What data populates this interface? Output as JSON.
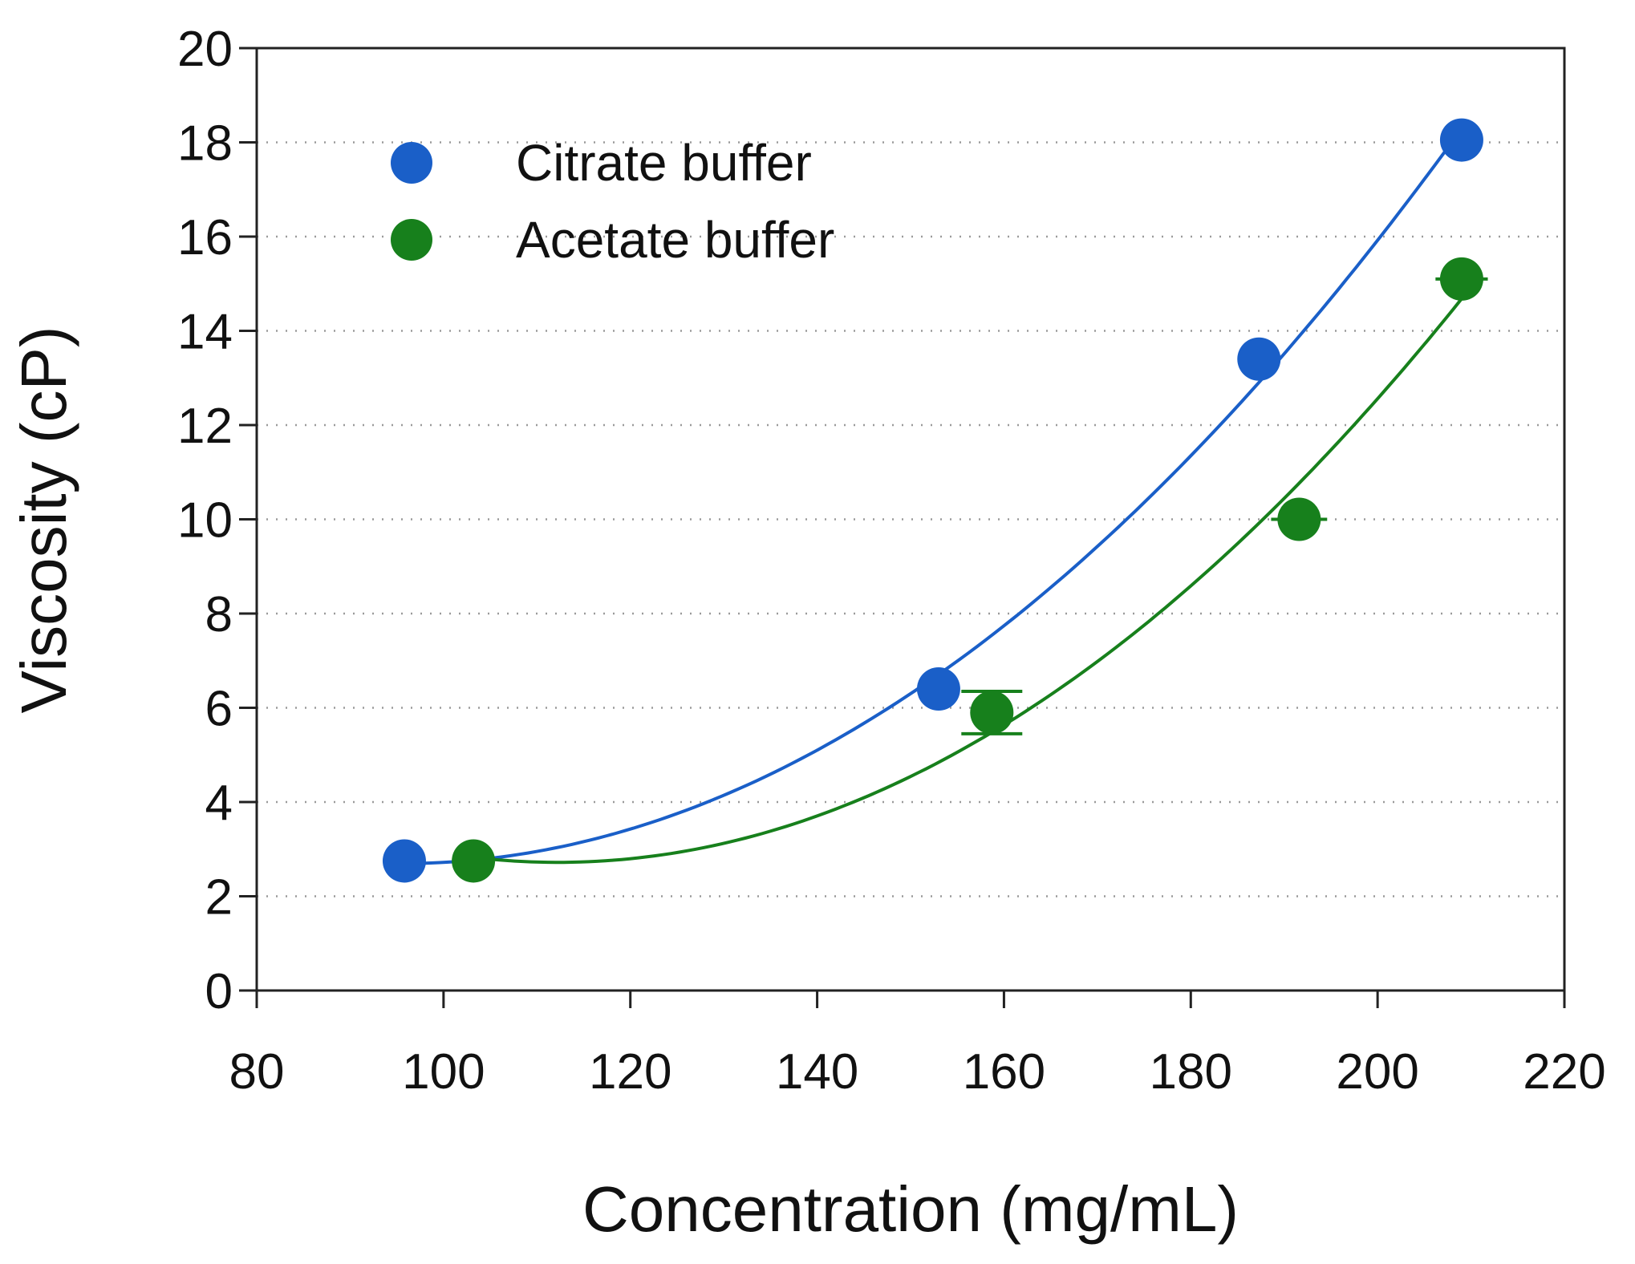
{
  "chart_data": {
    "type": "scatter",
    "title": "",
    "xlabel": "Concentration (mg/mL)",
    "ylabel": "Viscosity (cP)",
    "xlim": [
      80,
      220
    ],
    "ylim": [
      0,
      20
    ],
    "x_ticks": [
      "80",
      "100",
      "120",
      "140",
      "160",
      "180",
      "200",
      "220"
    ],
    "y_ticks": [
      "0",
      "2",
      "4",
      "6",
      "8",
      "10",
      "12",
      "14",
      "16",
      "18",
      "20"
    ],
    "x_tick_values": [
      80,
      100,
      120,
      140,
      160,
      180,
      200,
      220
    ],
    "y_tick_values": [
      0,
      2,
      4,
      6,
      8,
      10,
      12,
      14,
      16,
      18,
      20
    ],
    "grid": "horizontal dotted",
    "legend_position": "top-left",
    "series": [
      {
        "name": "Citrate buffer",
        "color": "#1a5fc8",
        "x": [
          95.8,
          153,
          187.3,
          209
        ],
        "y": [
          2.75,
          6.4,
          13.4,
          18.05
        ],
        "x_err": [
          0,
          0,
          0,
          0
        ],
        "y_err": [
          0,
          0,
          0,
          0
        ],
        "fit": "quadratic"
      },
      {
        "name": "Acetate buffer",
        "color": "#17801c",
        "x": [
          103.2,
          158.7,
          191.6,
          209
        ],
        "y": [
          2.75,
          5.9,
          10.0,
          15.1
        ],
        "x_err": [
          0,
          0,
          3,
          2.8
        ],
        "y_err": [
          0,
          0.45,
          0,
          0
        ],
        "fit": "quadratic"
      }
    ]
  }
}
